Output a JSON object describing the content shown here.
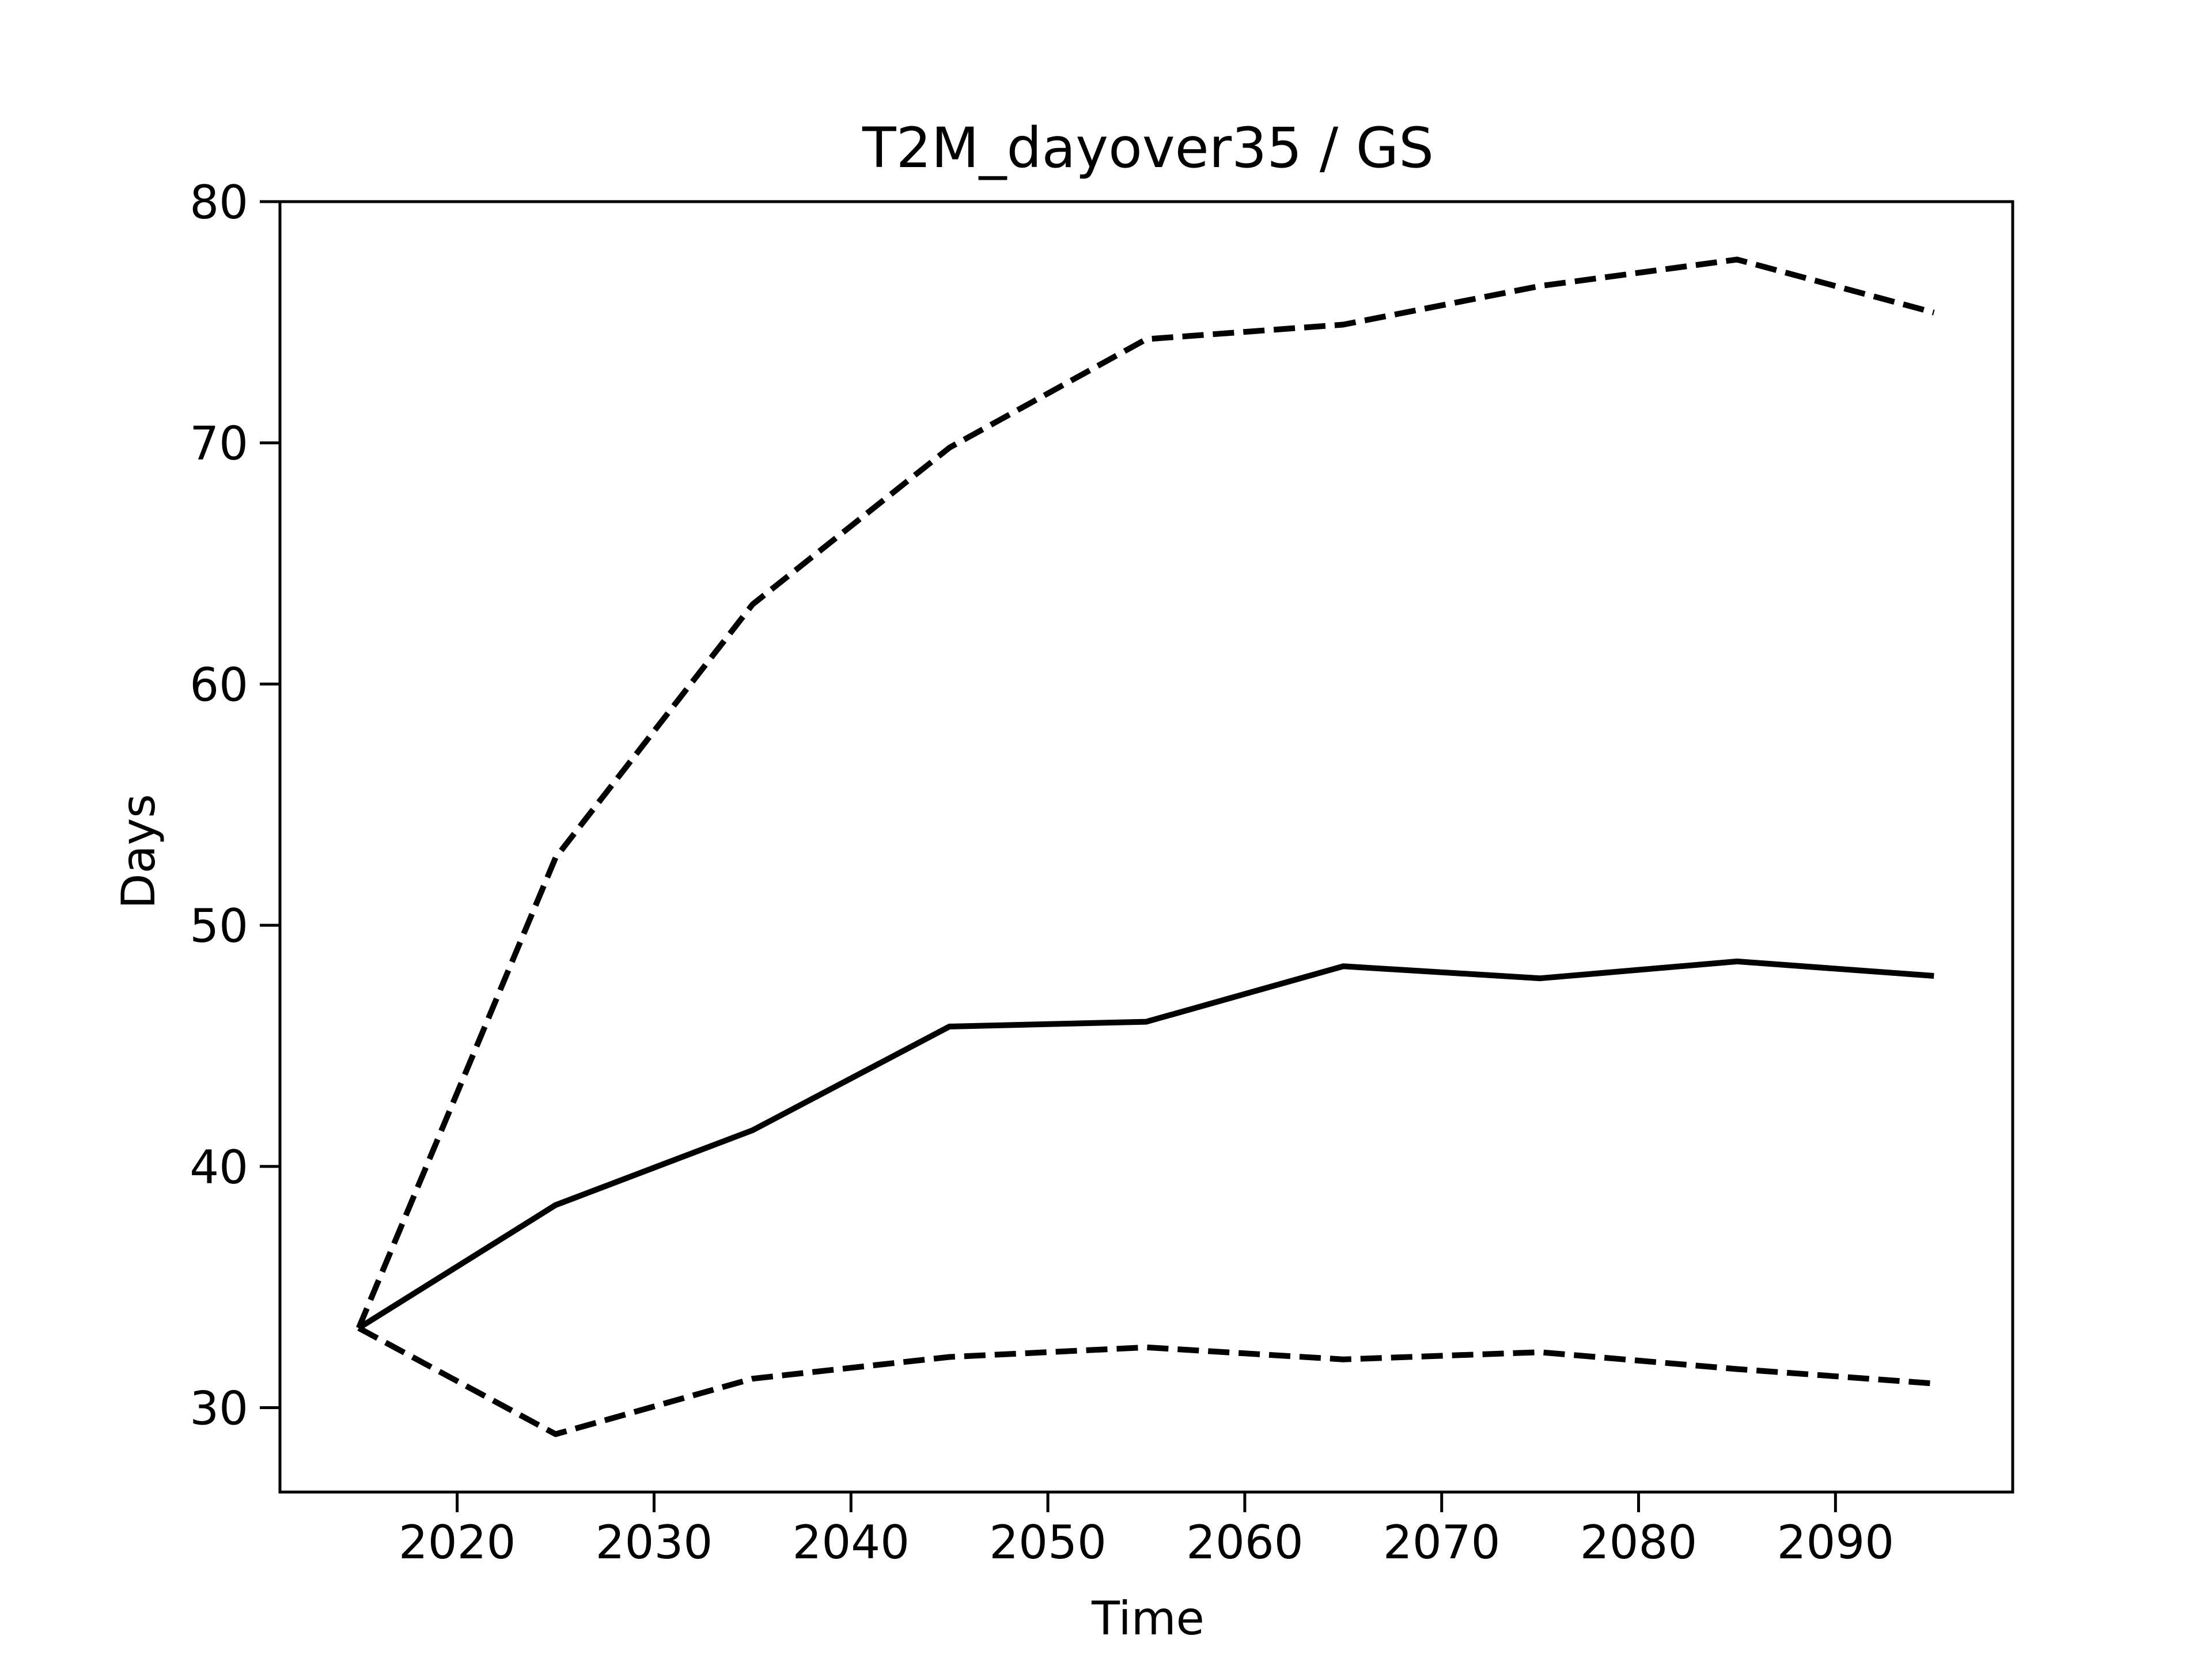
{
  "chart_data": {
    "type": "line",
    "title": "T2M_dayover35 / GS",
    "xlabel": "Time",
    "ylabel": "Days",
    "xlim": [
      2011,
      2099
    ],
    "ylim": [
      26.5,
      80
    ],
    "xticks": [
      2020,
      2030,
      2040,
      2050,
      2060,
      2070,
      2080,
      2090
    ],
    "yticks": [
      30,
      40,
      50,
      60,
      70,
      80
    ],
    "grid": false,
    "x": [
      2015,
      2025,
      2035,
      2045,
      2055,
      2065,
      2075,
      2085,
      2095
    ],
    "series": [
      {
        "style": "solid",
        "color": "#000000",
        "values": [
          33.3,
          38.4,
          41.5,
          45.8,
          46.0,
          48.3,
          47.8,
          48.5,
          47.9
        ]
      },
      {
        "style": "dashed",
        "color": "#000000",
        "values": [
          33.3,
          52.8,
          63.3,
          69.8,
          74.3,
          74.9,
          76.5,
          77.6,
          75.4
        ]
      },
      {
        "style": "dashed",
        "color": "#000000",
        "values": [
          33.3,
          28.9,
          31.2,
          32.1,
          32.5,
          32.0,
          32.3,
          31.6,
          31.0
        ]
      }
    ]
  }
}
